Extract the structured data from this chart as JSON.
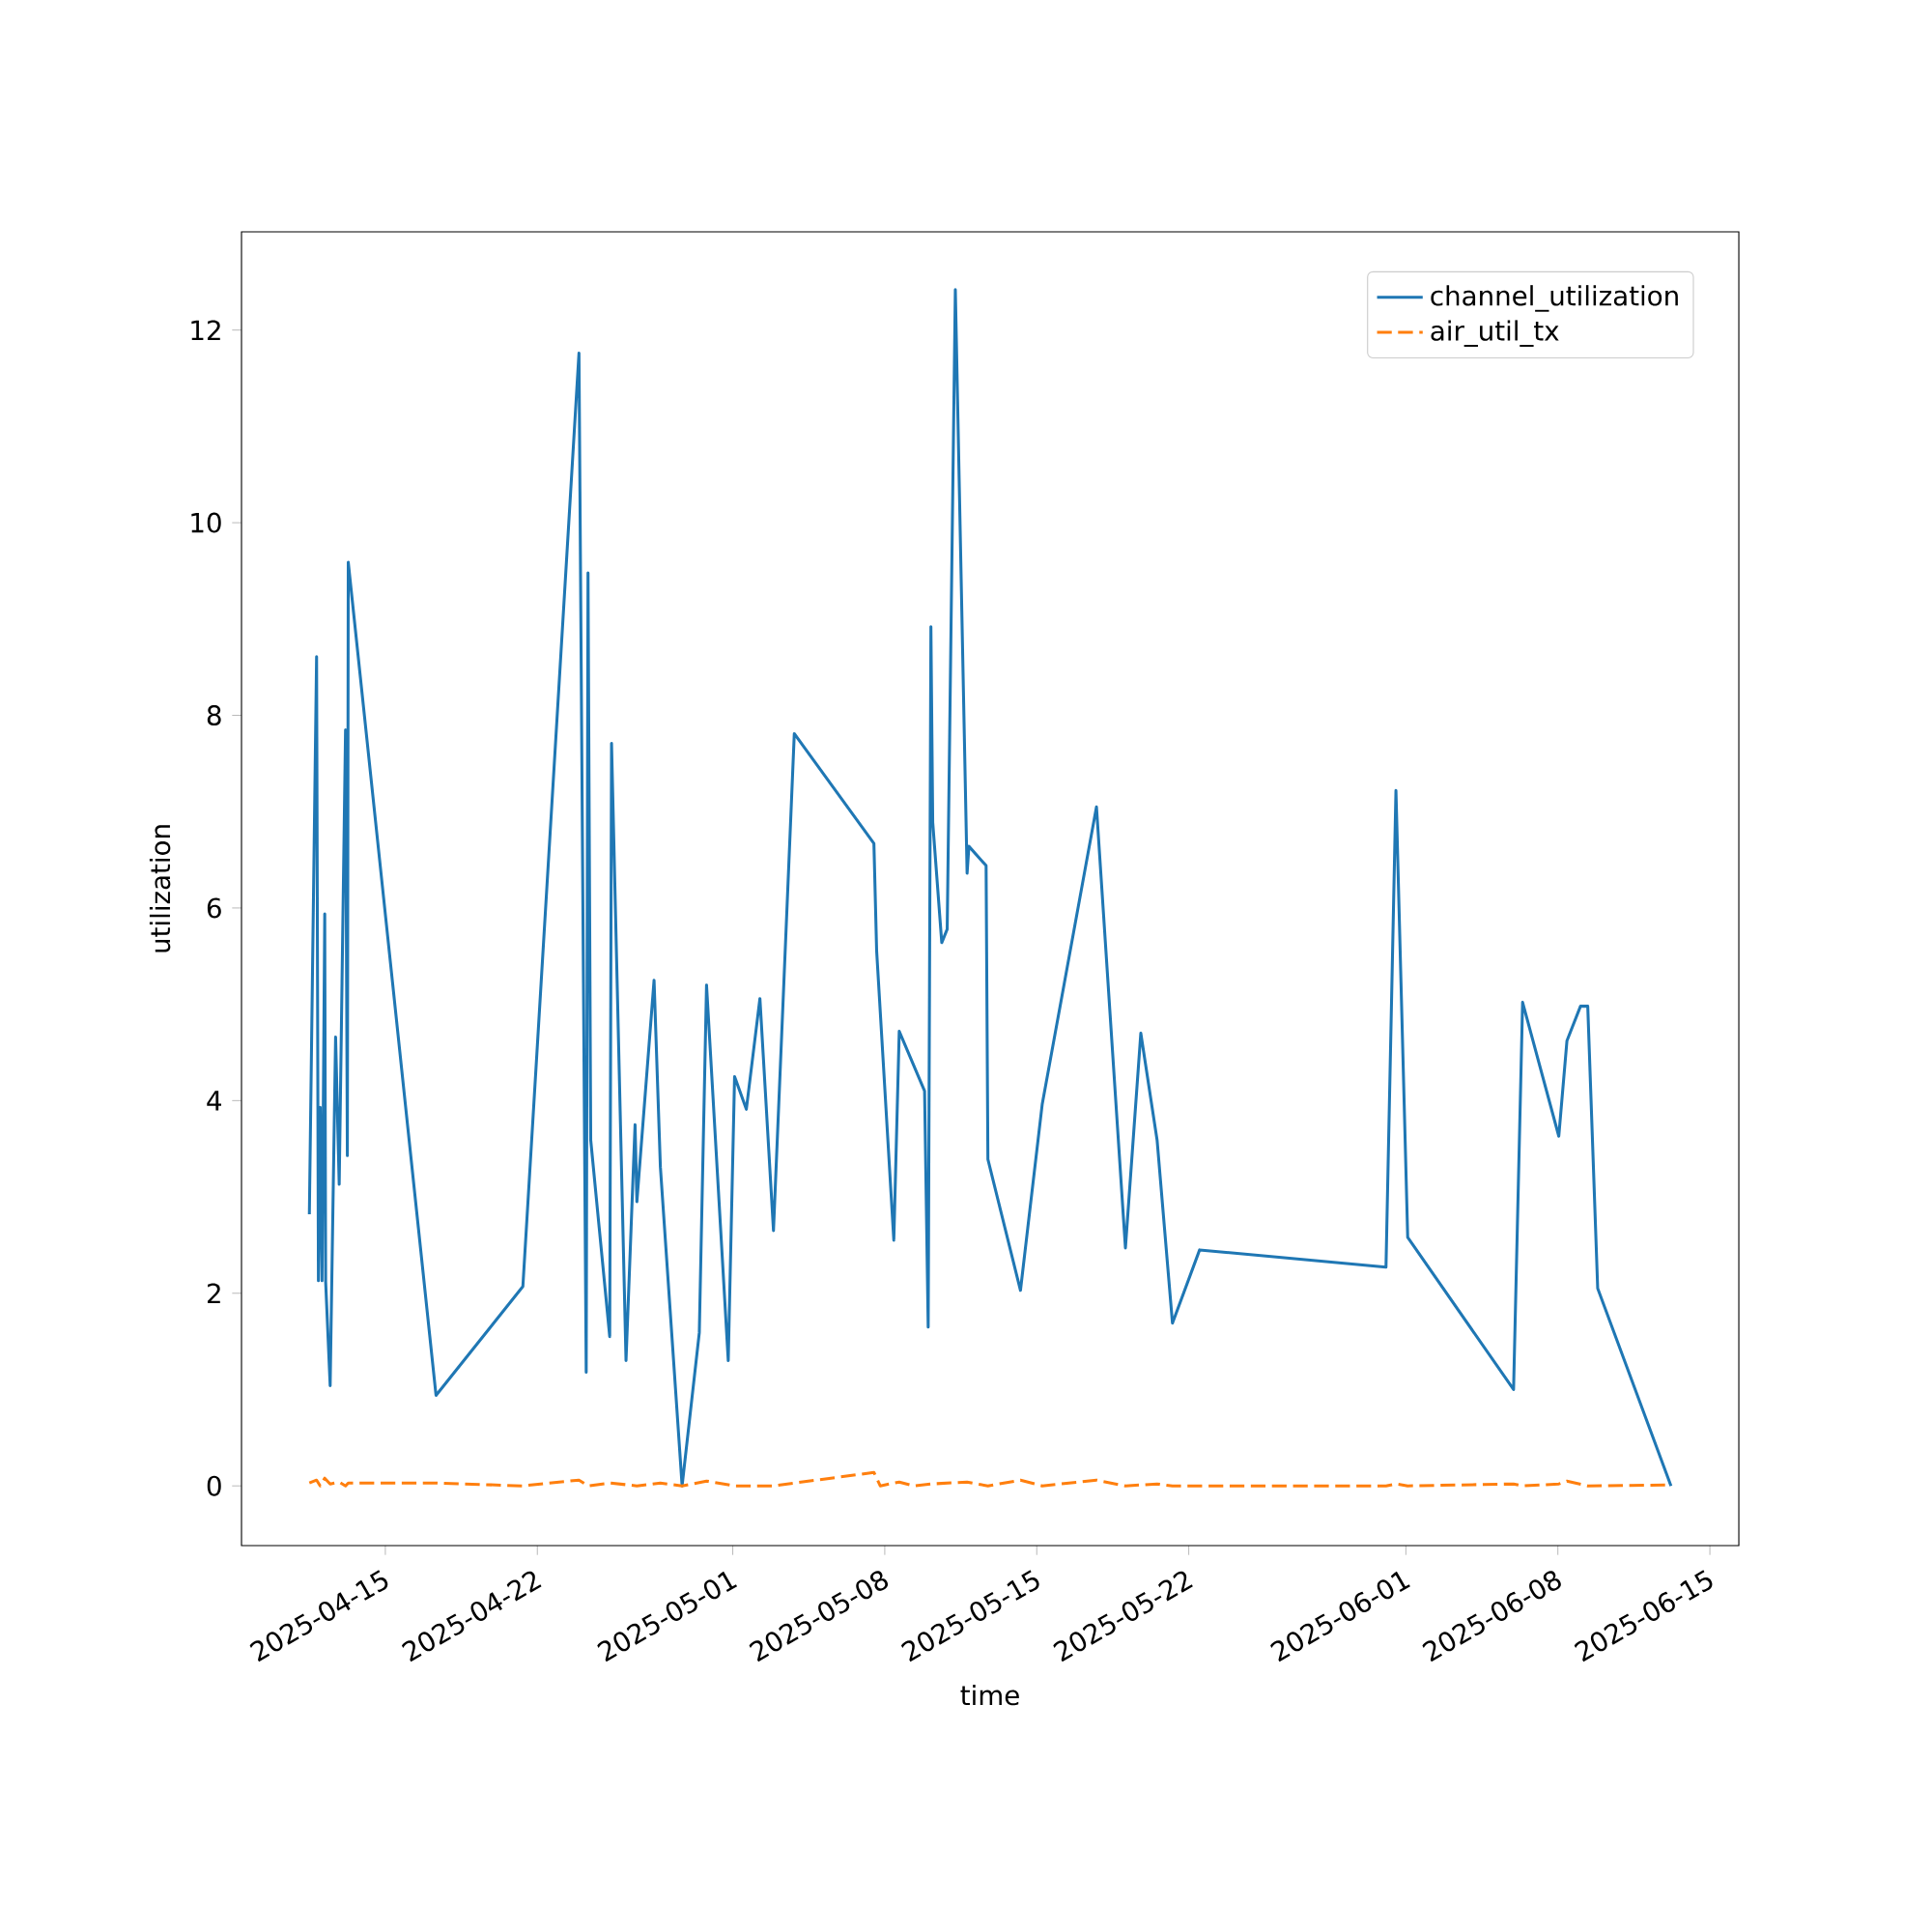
{
  "chart_data": {
    "type": "line",
    "xlabel": "time",
    "ylabel": "utilization",
    "legend": "top right",
    "xlim": [
      "2025-04-08T09:00",
      "2025-06-16T08:00"
    ],
    "ylim": [
      -0.62,
      13.02
    ],
    "xticks": [
      "2025-04-15",
      "2025-04-22",
      "2025-05-01",
      "2025-05-08",
      "2025-05-15",
      "2025-05-22",
      "2025-06-01",
      "2025-06-08",
      "2025-06-15"
    ],
    "yticks": [
      0,
      2,
      4,
      6,
      8,
      10,
      12
    ],
    "series": [
      {
        "name": "channel_utilization",
        "color": "#1f77b4",
        "line_style": "solid",
        "x": [
          "2025-04-11T12:00",
          "2025-04-11T20:00",
          "2025-04-11T22:00",
          "2025-04-12T00:00",
          "2025-04-12T02:00",
          "2025-04-12T05:00",
          "2025-04-12T06:00",
          "2025-04-12T11:00",
          "2025-04-12T17:00",
          "2025-04-12T21:00",
          "2025-04-13T04:00",
          "2025-04-13T06:00",
          "2025-04-13T07:00",
          "2025-04-17T08:00",
          "2025-04-21T08:00",
          "2025-04-23T22:00",
          "2025-04-24T06:00",
          "2025-04-24T08:00",
          "2025-04-24T11:00",
          "2025-04-25T08:00",
          "2025-04-25T10:00",
          "2025-04-26T02:00",
          "2025-04-26T12:00",
          "2025-04-26T14:00",
          "2025-04-27T09:00",
          "2025-04-27T16:00",
          "2025-04-28T16:00",
          "2025-04-29T11:00",
          "2025-04-29T19:00",
          "2025-04-30T19:00",
          "2025-05-01T02:00",
          "2025-05-01T15:00",
          "2025-05-02T06:00",
          "2025-05-02T21:00",
          "2025-05-03T20:00",
          "2025-05-07T12:00",
          "2025-05-07T15:00",
          "2025-05-08T10:00",
          "2025-05-08T16:00",
          "2025-05-09T20:00",
          "2025-05-10T00:00",
          "2025-05-10T03:00",
          "2025-05-10T05:00",
          "2025-05-10T15:00",
          "2025-05-10T21:00",
          "2025-05-11T06:00",
          "2025-05-11T19:00",
          "2025-05-11T21:00",
          "2025-05-12T16:00",
          "2025-05-12T18:00",
          "2025-05-14T06:00",
          "2025-05-15T06:00",
          "2025-05-17T18:00",
          "2025-05-19T02:00",
          "2025-05-19T19:00",
          "2025-05-20T13:00",
          "2025-05-21T06:00",
          "2025-05-22T12:00",
          "2025-05-31T02:00",
          "2025-05-31T13:00",
          "2025-06-01T02:00",
          "2025-06-05T23:00",
          "2025-06-06T09:00",
          "2025-06-08T01:00",
          "2025-06-08T10:00",
          "2025-06-09T01:00",
          "2025-06-09T09:00",
          "2025-06-09T20:00",
          "2025-06-13T05:00"
        ],
        "values": [
          2.82,
          8.61,
          2.13,
          3.93,
          2.13,
          5.94,
          2.12,
          1.04,
          4.66,
          3.13,
          7.85,
          3.43,
          9.59,
          0.94,
          2.07,
          11.76,
          1.18,
          9.48,
          3.59,
          1.55,
          7.71,
          1.3,
          3.75,
          2.95,
          5.25,
          3.31,
          0.0,
          1.59,
          5.2,
          1.3,
          4.25,
          3.91,
          5.06,
          2.65,
          7.81,
          6.67,
          5.56,
          2.55,
          4.72,
          4.1,
          1.65,
          8.92,
          6.89,
          5.64,
          5.78,
          12.42,
          6.36,
          6.64,
          6.44,
          3.39,
          2.03,
          3.96,
          7.05,
          2.47,
          4.7,
          3.59,
          1.69,
          2.45,
          2.27,
          7.22,
          2.58,
          1.0,
          5.02,
          3.63,
          4.62,
          4.98,
          4.98,
          2.05,
          0.0
        ]
      },
      {
        "name": "air_util_tx",
        "color": "#ff7f0e",
        "line_style": "dashed",
        "x": [
          "2025-04-11T12:00",
          "2025-04-11T20:00",
          "2025-04-12T00:00",
          "2025-04-12T05:00",
          "2025-04-12T11:00",
          "2025-04-12T21:00",
          "2025-04-13T04:00",
          "2025-04-13T07:00",
          "2025-04-17T08:00",
          "2025-04-21T08:00",
          "2025-04-23T22:00",
          "2025-04-24T08:00",
          "2025-04-25T09:00",
          "2025-04-26T14:00",
          "2025-04-27T16:00",
          "2025-04-28T16:00",
          "2025-04-29T19:00",
          "2025-05-01T02:00",
          "2025-05-02T21:00",
          "2025-05-07T12:00",
          "2025-05-07T19:00",
          "2025-05-08T16:00",
          "2025-05-09T08:00",
          "2025-05-10T03:00",
          "2025-05-11T19:00",
          "2025-05-12T18:00",
          "2025-05-14T06:00",
          "2025-05-15T06:00",
          "2025-05-17T18:00",
          "2025-05-19T02:00",
          "2025-05-20T13:00",
          "2025-05-21T06:00",
          "2025-05-31T02:00",
          "2025-05-31T13:00",
          "2025-06-01T02:00",
          "2025-06-05T23:00",
          "2025-06-06T09:00",
          "2025-06-08T01:00",
          "2025-06-08T10:00",
          "2025-06-09T09:00",
          "2025-06-13T05:00"
        ],
        "values": [
          0.03,
          0.06,
          0.0,
          0.08,
          0.02,
          0.04,
          0.0,
          0.03,
          0.03,
          0.0,
          0.06,
          0.0,
          0.03,
          0.0,
          0.03,
          0.0,
          0.05,
          0.0,
          0.0,
          0.14,
          0.0,
          0.04,
          0.0,
          0.02,
          0.04,
          0.0,
          0.06,
          0.0,
          0.06,
          0.0,
          0.02,
          0.0,
          0.0,
          0.02,
          0.0,
          0.02,
          0.0,
          0.02,
          0.05,
          0.0,
          0.01
        ]
      }
    ]
  }
}
